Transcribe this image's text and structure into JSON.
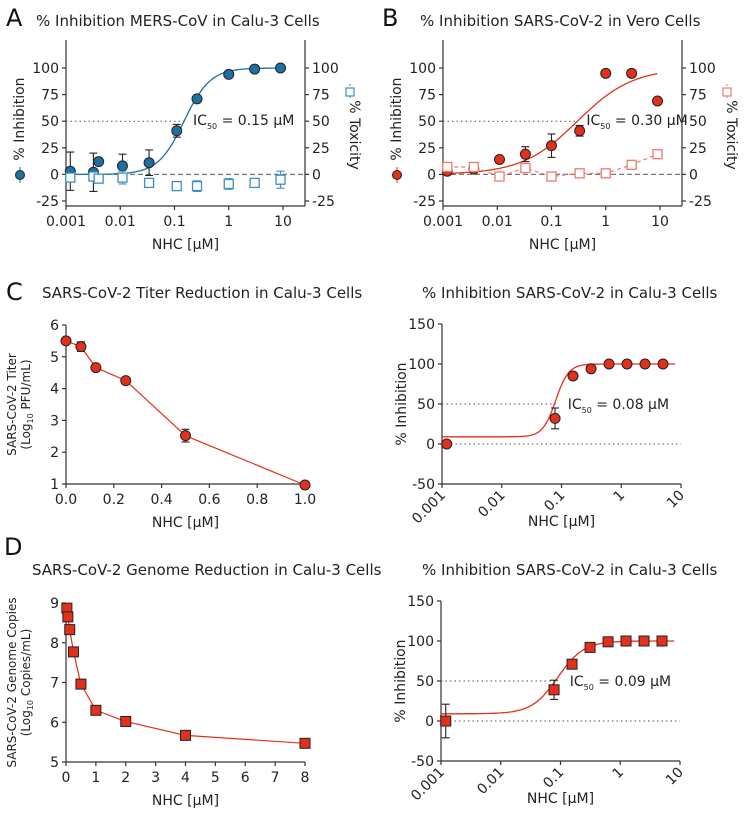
{
  "figure": {
    "panels": [
      "A",
      "B",
      "C",
      "D"
    ]
  },
  "chart_data": [
    {
      "id": "A",
      "type": "scatter",
      "title": "% Inhibition MERS-CoV in Calu-3 Cells",
      "xlabel": "NHC [µM]",
      "ylabel": "% Inhibition",
      "y2label": "% Toxicity",
      "xscale": "log",
      "xlim": [
        0.001,
        20
      ],
      "ylim": [
        -30,
        120
      ],
      "y2lim": [
        -30,
        120
      ],
      "xticks": [
        0.001,
        0.01,
        0.1,
        1,
        10
      ],
      "xticklabels": [
        "0.001",
        "0.01",
        "0.1",
        "1",
        "10"
      ],
      "yticks": [
        -25,
        0,
        25,
        50,
        75,
        100
      ],
      "yticklabels": [
        "-25",
        "0",
        "25",
        "50",
        "75",
        "100"
      ],
      "annotation": {
        "prefix": "IC",
        "sub": "50",
        "suffix": " = 0.15 µM"
      },
      "ic50": 0.15,
      "color": "#1f6fa3",
      "tox_color": "#3a8fc4",
      "series": [
        {
          "name": "% Inhibition",
          "marker": "circle",
          "fit": {
            "ic50": 0.15,
            "bottom": 0,
            "top": 100,
            "hill": 1.8
          },
          "x": [
            0.0012,
            0.0032,
            0.004,
            0.011,
            0.034,
            0.11,
            0.26,
            1.0,
            3.0,
            9.0
          ],
          "y": [
            3,
            2,
            12,
            8,
            11,
            41,
            71,
            94,
            99,
            100
          ],
          "err": [
            18,
            18,
            0,
            11,
            12,
            6,
            0,
            0,
            0,
            0
          ]
        },
        {
          "name": "% Toxicity",
          "marker": "square-open",
          "axis": "right",
          "x": [
            0.0012,
            0.0032,
            0.004,
            0.011,
            0.034,
            0.11,
            0.26,
            1.0,
            3.0,
            9.0
          ],
          "y": [
            -3,
            -2,
            -4,
            -3,
            -8,
            -11,
            -11,
            -9,
            -8,
            -5
          ],
          "err": [
            0,
            0,
            4,
            6,
            0,
            0,
            5,
            5,
            4,
            8
          ]
        }
      ],
      "reference_lines": [
        {
          "y": 0,
          "style": "dashed"
        },
        {
          "y": 50,
          "style": "dotted",
          "to_x": 0.15
        }
      ]
    },
    {
      "id": "B",
      "type": "scatter",
      "title": "% Inhibition SARS-CoV-2 in Vero Cells",
      "xlabel": "NHC [µM]",
      "ylabel": "% Inhibition",
      "y2label": "% Toxicity",
      "xscale": "log",
      "xlim": [
        0.001,
        20
      ],
      "ylim": [
        -30,
        120
      ],
      "y2lim": [
        -30,
        120
      ],
      "xticks": [
        0.001,
        0.01,
        0.1,
        1,
        10
      ],
      "xticklabels": [
        "0.001",
        "0.01",
        "0.1",
        "1",
        "10"
      ],
      "yticks": [
        -25,
        0,
        25,
        50,
        75,
        100
      ],
      "yticklabels": [
        "-25",
        "0",
        "25",
        "50",
        "75",
        "100"
      ],
      "annotation": {
        "prefix": "IC",
        "sub": "50",
        "suffix": " = 0.30 µM"
      },
      "ic50": 0.3,
      "color": "#e2301b",
      "tox_color": "#f07a6a",
      "series": [
        {
          "name": "% Inhibition",
          "marker": "circle",
          "fit": {
            "ic50": 0.3,
            "bottom": 0,
            "top": 100,
            "hill": 0.85
          },
          "x": [
            0.0012,
            0.0037,
            0.011,
            0.033,
            0.1,
            0.33,
            1.0,
            3.0,
            9.0
          ],
          "y": [
            3,
            5,
            14,
            19,
            27,
            41,
            95,
            95,
            69
          ],
          "err": [
            0,
            0,
            0,
            7,
            11,
            5,
            0,
            0,
            0
          ]
        },
        {
          "name": "% Toxicity",
          "marker": "square-open",
          "axis": "right",
          "line": "dashed",
          "x": [
            0.0012,
            0.0037,
            0.011,
            0.033,
            0.1,
            0.33,
            1.0,
            3.0,
            9.0
          ],
          "y": [
            7,
            7,
            -2,
            6,
            -2,
            1,
            1,
            9,
            19
          ],
          "err": [
            0,
            0,
            0,
            0,
            0,
            0,
            0,
            0,
            0
          ]
        }
      ],
      "reference_lines": [
        {
          "y": 0,
          "style": "dashed"
        },
        {
          "y": 50,
          "style": "dotted",
          "to_x": 0.3
        }
      ]
    },
    {
      "id": "C",
      "type": "line",
      "title": "SARS-CoV-2 Titer Reduction in Calu-3 Cells",
      "xlabel": "NHC [µM]",
      "ylabel_line1": "SARS-CoV-2 Titer",
      "ylabel_line2_pre": "(Log",
      "ylabel_line2_sub": "10",
      "ylabel_line2_post": " PFU/mL)",
      "xscale": "linear",
      "xlim": [
        0,
        1.0
      ],
      "ylim": [
        1,
        6
      ],
      "xticks": [
        0,
        0.2,
        0.4,
        0.6,
        0.8,
        1.0
      ],
      "xticklabels": [
        "0.0",
        "0.2",
        "0.4",
        "0.6",
        "0.8",
        "1.0"
      ],
      "yticks": [
        1,
        2,
        3,
        4,
        5,
        6
      ],
      "yticklabels": [
        "1",
        "2",
        "3",
        "4",
        "5",
        "6"
      ],
      "color": "#e2301b",
      "series": [
        {
          "name": "Titer",
          "marker": "circle",
          "x": [
            0,
            0.0625,
            0.125,
            0.25,
            0.5,
            1.0
          ],
          "y": [
            5.5,
            5.32,
            4.66,
            4.25,
            2.52,
            0.97
          ],
          "err": [
            0,
            0.15,
            0,
            0,
            0.2,
            0
          ]
        }
      ]
    },
    {
      "id": "C2",
      "type": "scatter",
      "title": "% Inhibition SARS-CoV-2 in Calu-3 Cells",
      "xlabel": "NHC [µM]",
      "ylabel": "% Inhibition",
      "xscale": "log",
      "xlim": [
        0.001,
        10
      ],
      "ylim": [
        -50,
        150
      ],
      "xticks": [
        0.001,
        0.01,
        0.1,
        1,
        10
      ],
      "xticklabels": [
        "0.001",
        "0.01",
        "0.1",
        "1",
        "10"
      ],
      "yticks": [
        -50,
        0,
        50,
        100,
        150
      ],
      "yticklabels": [
        "-50",
        "0",
        "50",
        "100",
        "150"
      ],
      "annotation": {
        "prefix": "IC",
        "sub": "50",
        "suffix": " = 0.08 µM"
      },
      "ic50": 0.08,
      "color": "#e2301b",
      "series": [
        {
          "name": "% Inhibition",
          "marker": "circle",
          "fit": {
            "ic50": 0.08,
            "bottom": 9,
            "top": 100,
            "hill": 4
          },
          "x": [
            0.0012,
            0.078,
            0.156,
            0.3125,
            0.625,
            1.25,
            2.5,
            5.0
          ],
          "y": [
            0,
            32,
            85,
            94,
            100,
            100,
            100,
            100
          ],
          "err": [
            0,
            13,
            0,
            0,
            0,
            0,
            0,
            0
          ]
        }
      ],
      "reference_lines": [
        {
          "y": 0,
          "style": "dotted"
        },
        {
          "y": 50,
          "style": "dotted",
          "to_x": 0.08
        }
      ]
    },
    {
      "id": "D",
      "type": "line",
      "title": "SARS-CoV-2 Genome Reduction in Calu-3 Cells",
      "xlabel": "NHC [µM]",
      "ylabel_line1": "SARS-CoV-2 Genome Copies",
      "ylabel_line2_pre": "(Log",
      "ylabel_line2_sub": "10",
      "ylabel_line2_post": " Copies/mL)",
      "xscale": "linear",
      "xlim": [
        0,
        8
      ],
      "ylim": [
        5,
        9
      ],
      "xticks": [
        0,
        1,
        2,
        3,
        4,
        5,
        6,
        7,
        8
      ],
      "xticklabels": [
        "0",
        "1",
        "2",
        "3",
        "4",
        "5",
        "6",
        "7",
        "8"
      ],
      "yticks": [
        5,
        6,
        7,
        8,
        9
      ],
      "yticklabels": [
        "5",
        "6",
        "7",
        "8",
        "9"
      ],
      "color": "#e2301b",
      "series": [
        {
          "name": "Genome copies",
          "marker": "square",
          "x": [
            0.03,
            0.0625,
            0.125,
            0.25,
            0.5,
            1,
            2,
            4,
            8
          ],
          "y": [
            8.87,
            8.65,
            8.33,
            7.77,
            6.96,
            6.3,
            6.02,
            5.67,
            5.47
          ],
          "err": [
            0,
            0,
            0,
            0,
            0,
            0,
            0,
            0,
            0
          ]
        }
      ]
    },
    {
      "id": "D2",
      "type": "scatter",
      "title": "% Inhibition SARS-CoV-2 in Calu-3 Cells",
      "xlabel": "NHC [µM]",
      "ylabel": "% Inhibition",
      "xscale": "log",
      "xlim": [
        0.001,
        10
      ],
      "ylim": [
        -50,
        150
      ],
      "xticks": [
        0.001,
        0.01,
        0.1,
        1,
        10
      ],
      "xticklabels": [
        "0.001",
        "0.01",
        "0.1",
        "1",
        "10"
      ],
      "yticks": [
        -50,
        0,
        50,
        100,
        150
      ],
      "yticklabels": [
        "-50",
        "0",
        "50",
        "100",
        "150"
      ],
      "annotation": {
        "prefix": "IC",
        "sub": "50",
        "suffix": " = 0.09 µM"
      },
      "ic50": 0.09,
      "color": "#e2301b",
      "series": [
        {
          "name": "% Inhibition",
          "marker": "square",
          "fit": {
            "ic50": 0.09,
            "bottom": 9,
            "top": 100,
            "hill": 2
          },
          "x": [
            0.0012,
            0.078,
            0.156,
            0.3125,
            0.625,
            1.25,
            2.5,
            5.0
          ],
          "y": [
            0,
            39,
            71,
            92,
            99,
            100,
            100,
            100
          ],
          "err": [
            21,
            12,
            0,
            0,
            0,
            0,
            0,
            0
          ]
        }
      ],
      "reference_lines": [
        {
          "y": 0,
          "style": "dotted"
        },
        {
          "y": 50,
          "style": "dotted",
          "to_x": 0.09
        }
      ]
    }
  ]
}
